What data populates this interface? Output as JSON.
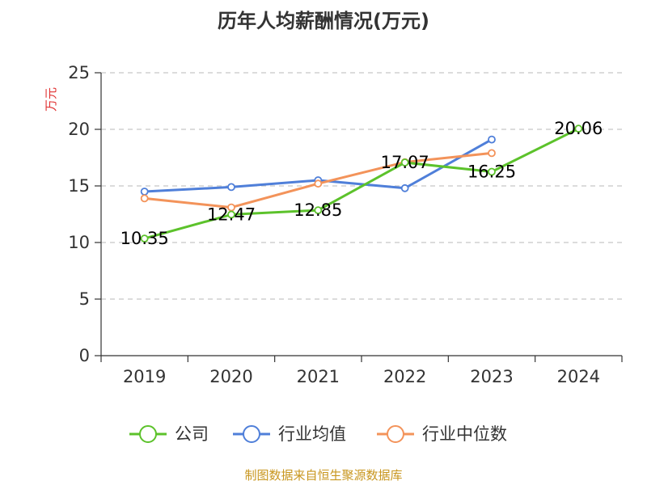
{
  "chart_data": {
    "type": "line",
    "title": "历年人均薪酬情况(万元)",
    "ylabel": "万元",
    "xlabel": "",
    "categories": [
      "2019",
      "2020",
      "2021",
      "2022",
      "2023",
      "2024"
    ],
    "ylim": [
      0,
      25
    ],
    "yticks": [
      "0",
      "5",
      "10",
      "15",
      "20",
      "25"
    ],
    "grid": true,
    "legend_position": "bottom",
    "series": [
      {
        "name": "公司",
        "color": "#5cc22b",
        "values": [
          10.35,
          12.47,
          12.85,
          17.07,
          16.25,
          20.06
        ],
        "labels": [
          "10.35",
          "12.47",
          "12.85",
          "17.07",
          "16.25",
          "20.06"
        ]
      },
      {
        "name": "行业均值",
        "color": "#4f7fd9",
        "values": [
          14.5,
          14.9,
          15.5,
          14.8,
          19.1,
          null
        ]
      },
      {
        "name": "行业中位数",
        "color": "#f3935a",
        "values": [
          13.9,
          13.1,
          15.2,
          17.1,
          17.9,
          null
        ]
      }
    ]
  },
  "footer": {
    "source": "制图数据来自恒生聚源数据库"
  }
}
